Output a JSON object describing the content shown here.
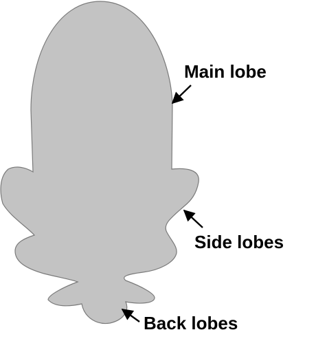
{
  "diagram": {
    "colors": {
      "pattern_fill": "#c3c3c3",
      "pattern_stroke": "#7a7a7a",
      "text": "#000000",
      "arrow": "#000000"
    },
    "labels": {
      "main_lobe": "Main lobe",
      "side_lobes": "Side lobes",
      "back_lobes": "Back lobes"
    }
  }
}
